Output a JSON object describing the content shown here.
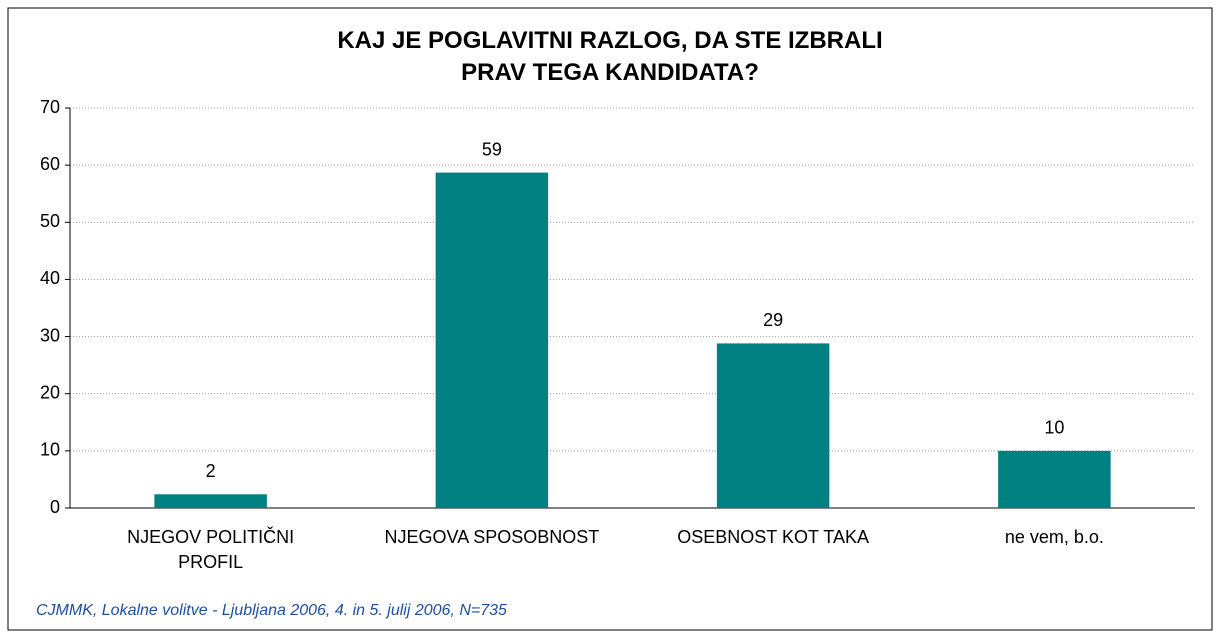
{
  "chart_data": {
    "type": "bar",
    "title": "KAJ JE POGLAVITNI RAZLOG, DA STE IZBRALI PRAV TEGA KANDIDATA?",
    "categories": [
      "NJEGOV POLITIČNI PROFIL",
      "NJEGOVA SPOSOBNOST",
      "OSEBNOST KOT TAKA",
      "ne vem, b.o."
    ],
    "values": [
      2.4,
      58.7,
      28.8,
      10.0
    ],
    "value_labels": [
      "2",
      "59",
      "29",
      "10"
    ],
    "color": "#008080",
    "ylim": [
      0,
      70
    ],
    "yticks": [
      0,
      10,
      20,
      30,
      40,
      50,
      60,
      70
    ],
    "grid": true,
    "source": "CJMMK, Lokalne volitve - Ljubljana 2006, 4. in 5. julij 2006, N=735"
  }
}
